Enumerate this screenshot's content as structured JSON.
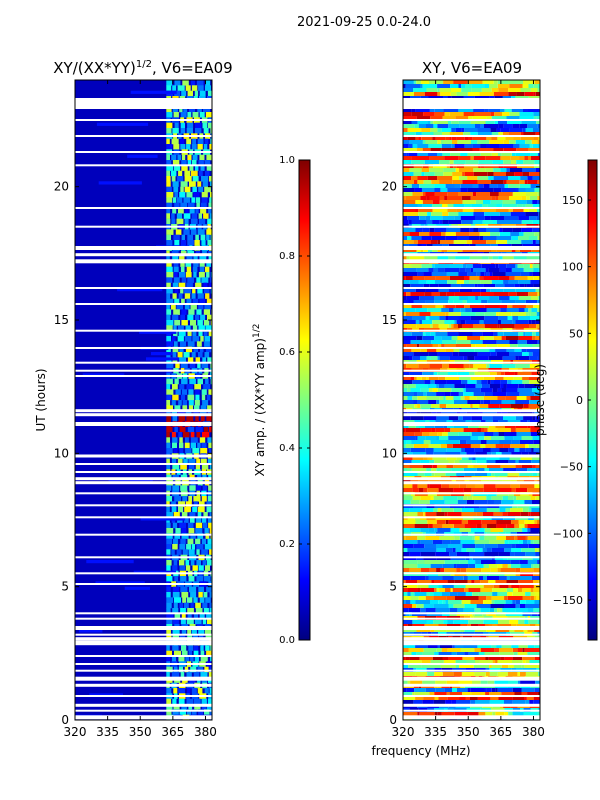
{
  "suptitle": "2021-09-25 0.0-24.0",
  "xlabel_shared": "frequency (MHz)",
  "colors": {
    "jet": [
      "#00007f",
      "#0000ff",
      "#007fff",
      "#00ffff",
      "#7fff7f",
      "#ffff00",
      "#ff7f00",
      "#ff0000",
      "#7f0000"
    ],
    "gap": "#ffffff",
    "axis": "#000000"
  },
  "chart_data": [
    {
      "type": "heatmap",
      "title_main": "XY/(XX*YY)",
      "title_exp": "1/2",
      "title_suffix": ", V6=EA09",
      "xlabel": "",
      "ylabel": "UT (hours)",
      "xlim": [
        320,
        383
      ],
      "ylim": [
        0,
        24
      ],
      "xticks": [
        320,
        335,
        350,
        365,
        380
      ],
      "yticks": [
        0,
        5,
        10,
        15,
        20
      ],
      "colorbar": {
        "label_main": "XY amp. / (XX*YY amp)",
        "label_exp": "1/2",
        "range": [
          0.0,
          1.0
        ],
        "ticks": [
          "0.0",
          "0.2",
          "0.4",
          "0.6",
          "0.8",
          "1.0"
        ]
      },
      "description_bands": [
        {
          "freq_range": [
            320,
            362
          ],
          "level": 0.05
        },
        {
          "freq_range": [
            362,
            383
          ],
          "level": 0.4
        }
      ],
      "hot_spot": {
        "freq_range": [
          362,
          382
        ],
        "time_range": [
          10.6,
          11.4
        ],
        "level": 0.9
      }
    },
    {
      "type": "heatmap",
      "title_main": "XY, V6=EA09",
      "xlabel": "frequency (MHz)",
      "ylabel": "",
      "xlim": [
        320,
        383
      ],
      "ylim": [
        0,
        24
      ],
      "xticks": [
        320,
        335,
        350,
        365,
        380
      ],
      "yticks": [
        0,
        5,
        10,
        15,
        20
      ],
      "colorbar": {
        "label": "phase (deg)",
        "range": [
          -180,
          180
        ],
        "ticks": [
          "150",
          "100",
          "50",
          "0",
          "−50",
          "−100",
          "−150"
        ]
      }
    }
  ]
}
